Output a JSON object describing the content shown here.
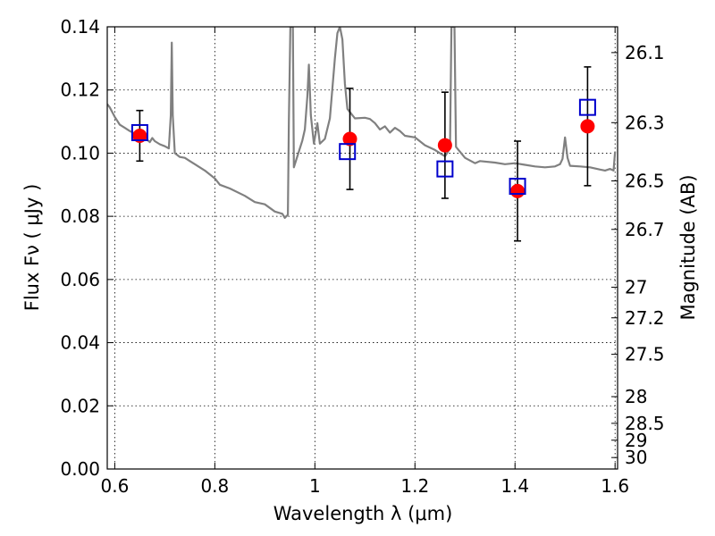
{
  "chart_data": {
    "type": "scatter",
    "xlabel": "Wavelength  λ (μm)",
    "ylabel": "Flux  Fν  ( μJy )",
    "ylabel_right": "Magnitude (AB)",
    "xlim": [
      0.585,
      1.605
    ],
    "ylim": [
      0.0,
      0.14
    ],
    "grid": true,
    "x_ticks": [
      0.6,
      0.8,
      1.0,
      1.2,
      1.4,
      1.6
    ],
    "x_tick_labels": [
      "0.6",
      "0.8",
      "1",
      "1.2",
      "1.4",
      "1.6"
    ],
    "y_ticks": [
      0.0,
      0.02,
      0.04,
      0.06,
      0.08,
      0.1,
      0.12,
      0.14
    ],
    "y_tick_labels": [
      "0.00",
      "0.02",
      "0.04",
      "0.06",
      "0.08",
      "0.10",
      "0.12",
      "0.14"
    ],
    "right_ticks": [
      {
        "mag": 26.1,
        "label": "26.1"
      },
      {
        "mag": 26.3,
        "label": "26.3"
      },
      {
        "mag": 26.5,
        "label": "26.5"
      },
      {
        "mag": 26.7,
        "label": "26.7"
      },
      {
        "mag": 27.0,
        "label": "27"
      },
      {
        "mag": 27.2,
        "label": "27.2"
      },
      {
        "mag": 27.5,
        "label": "27.5"
      },
      {
        "mag": 28.0,
        "label": "28"
      },
      {
        "mag": 28.5,
        "label": "28.5"
      },
      {
        "mag": 29.0,
        "label": "29"
      },
      {
        "mag": 30.0,
        "label": "30"
      }
    ],
    "observed": {
      "color": "#ff0000",
      "x": [
        0.65,
        1.07,
        1.26,
        1.405,
        1.545
      ],
      "y": [
        0.1055,
        0.1045,
        0.1025,
        0.088,
        0.1085
      ],
      "yerr": [
        0.008,
        0.016,
        0.0168,
        0.0158,
        0.0188
      ]
    },
    "model_points": {
      "color": "#0000cc",
      "x": [
        0.65,
        1.065,
        1.26,
        1.405,
        1.545
      ],
      "y": [
        0.1065,
        0.1005,
        0.095,
        0.0895,
        0.1145
      ]
    },
    "model_spectrum": {
      "color": "#808080",
      "points": [
        [
          0.585,
          0.1155
        ],
        [
          0.59,
          0.1145
        ],
        [
          0.6,
          0.1115
        ],
        [
          0.61,
          0.109
        ],
        [
          0.62,
          0.108
        ],
        [
          0.63,
          0.107
        ],
        [
          0.64,
          0.1062
        ],
        [
          0.65,
          0.1055
        ],
        [
          0.66,
          0.1048
        ],
        [
          0.665,
          0.1042
        ],
        [
          0.67,
          0.1035
        ],
        [
          0.675,
          0.1048
        ],
        [
          0.68,
          0.1038
        ],
        [
          0.69,
          0.1028
        ],
        [
          0.7,
          0.1022
        ],
        [
          0.708,
          0.1015
        ],
        [
          0.712,
          0.112
        ],
        [
          0.714,
          0.135
        ],
        [
          0.716,
          0.112
        ],
        [
          0.72,
          0.1
        ],
        [
          0.73,
          0.0988
        ],
        [
          0.74,
          0.0985
        ],
        [
          0.75,
          0.0975
        ],
        [
          0.76,
          0.0965
        ],
        [
          0.78,
          0.0945
        ],
        [
          0.8,
          0.092
        ],
        [
          0.81,
          0.09
        ],
        [
          0.83,
          0.0888
        ],
        [
          0.86,
          0.0865
        ],
        [
          0.88,
          0.0845
        ],
        [
          0.9,
          0.0838
        ],
        [
          0.92,
          0.0815
        ],
        [
          0.935,
          0.0808
        ],
        [
          0.94,
          0.0795
        ],
        [
          0.946,
          0.0805
        ],
        [
          0.948,
          0.11
        ],
        [
          0.951,
          0.14
        ],
        [
          0.956,
          0.14
        ],
        [
          0.958,
          0.0955
        ],
        [
          0.965,
          0.099
        ],
        [
          0.975,
          0.104
        ],
        [
          0.98,
          0.1075
        ],
        [
          0.985,
          0.118
        ],
        [
          0.988,
          0.128
        ],
        [
          0.992,
          0.112
        ],
        [
          0.998,
          0.103
        ],
        [
          1.005,
          0.1095
        ],
        [
          1.01,
          0.103
        ],
        [
          1.02,
          0.1045
        ],
        [
          1.03,
          0.111
        ],
        [
          1.04,
          0.13
        ],
        [
          1.045,
          0.138
        ],
        [
          1.05,
          0.14
        ],
        [
          1.055,
          0.136
        ],
        [
          1.06,
          0.122
        ],
        [
          1.065,
          0.114
        ],
        [
          1.08,
          0.111
        ],
        [
          1.1,
          0.1112
        ],
        [
          1.11,
          0.1108
        ],
        [
          1.12,
          0.1095
        ],
        [
          1.13,
          0.1075
        ],
        [
          1.14,
          0.1085
        ],
        [
          1.15,
          0.1065
        ],
        [
          1.16,
          0.108
        ],
        [
          1.17,
          0.107
        ],
        [
          1.18,
          0.1055
        ],
        [
          1.2,
          0.105
        ],
        [
          1.22,
          0.1025
        ],
        [
          1.24,
          0.101
        ],
        [
          1.26,
          0.099
        ],
        [
          1.27,
          0.1015
        ],
        [
          1.273,
          0.14
        ],
        [
          1.279,
          0.14
        ],
        [
          1.282,
          0.102
        ],
        [
          1.3,
          0.0985
        ],
        [
          1.32,
          0.0968
        ],
        [
          1.33,
          0.0975
        ],
        [
          1.36,
          0.097
        ],
        [
          1.38,
          0.0965
        ],
        [
          1.4,
          0.0968
        ],
        [
          1.42,
          0.0963
        ],
        [
          1.44,
          0.0958
        ],
        [
          1.46,
          0.0955
        ],
        [
          1.48,
          0.0958
        ],
        [
          1.49,
          0.0965
        ],
        [
          1.495,
          0.0982
        ],
        [
          1.5,
          0.105
        ],
        [
          1.505,
          0.0985
        ],
        [
          1.51,
          0.096
        ],
        [
          1.53,
          0.0958
        ],
        [
          1.55,
          0.0955
        ],
        [
          1.57,
          0.0948
        ],
        [
          1.58,
          0.0945
        ],
        [
          1.59,
          0.095
        ],
        [
          1.597,
          0.0945
        ],
        [
          1.6,
          0.1005
        ]
      ]
    }
  }
}
